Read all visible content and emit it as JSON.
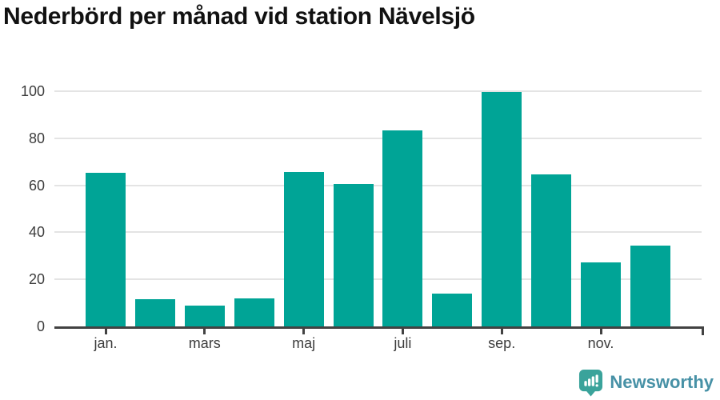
{
  "page": {
    "title": "Nederbörd per månad vid station Nävelsjö"
  },
  "chart_data": {
    "type": "bar",
    "title": "Nederbörd per månad vid station Nävelsjö",
    "categories": [
      "jan.",
      "",
      "mars",
      "",
      "maj",
      "",
      "juli",
      "",
      "sep.",
      "",
      "nov.",
      ""
    ],
    "values": [
      65.4,
      11.4,
      8.8,
      11.8,
      65.5,
      60.4,
      83.3,
      13.9,
      99.5,
      64.8,
      27.1,
      34.5
    ],
    "x_tick_indices": [
      0,
      2,
      4,
      6,
      8,
      10
    ],
    "x_tick_labels": [
      "jan.",
      "mars",
      "maj",
      "juli",
      "sep.",
      "nov."
    ],
    "y_ticks": [
      0,
      20,
      40,
      60,
      80,
      100
    ],
    "ylim": [
      0,
      100
    ],
    "xlabel": "",
    "ylabel": "",
    "grid": "horizontal",
    "legend": "none",
    "bar_color": "#00a496",
    "axis_color": "#424242",
    "gridline_color": "#e4e4e4",
    "tick_label_color": "#3d3d3d"
  },
  "footer": {
    "brand": "Newsworthy",
    "brand_text_color": "#4791a6",
    "logo_color": "#3aa39b",
    "logo_mark_color": "#ffffff"
  }
}
